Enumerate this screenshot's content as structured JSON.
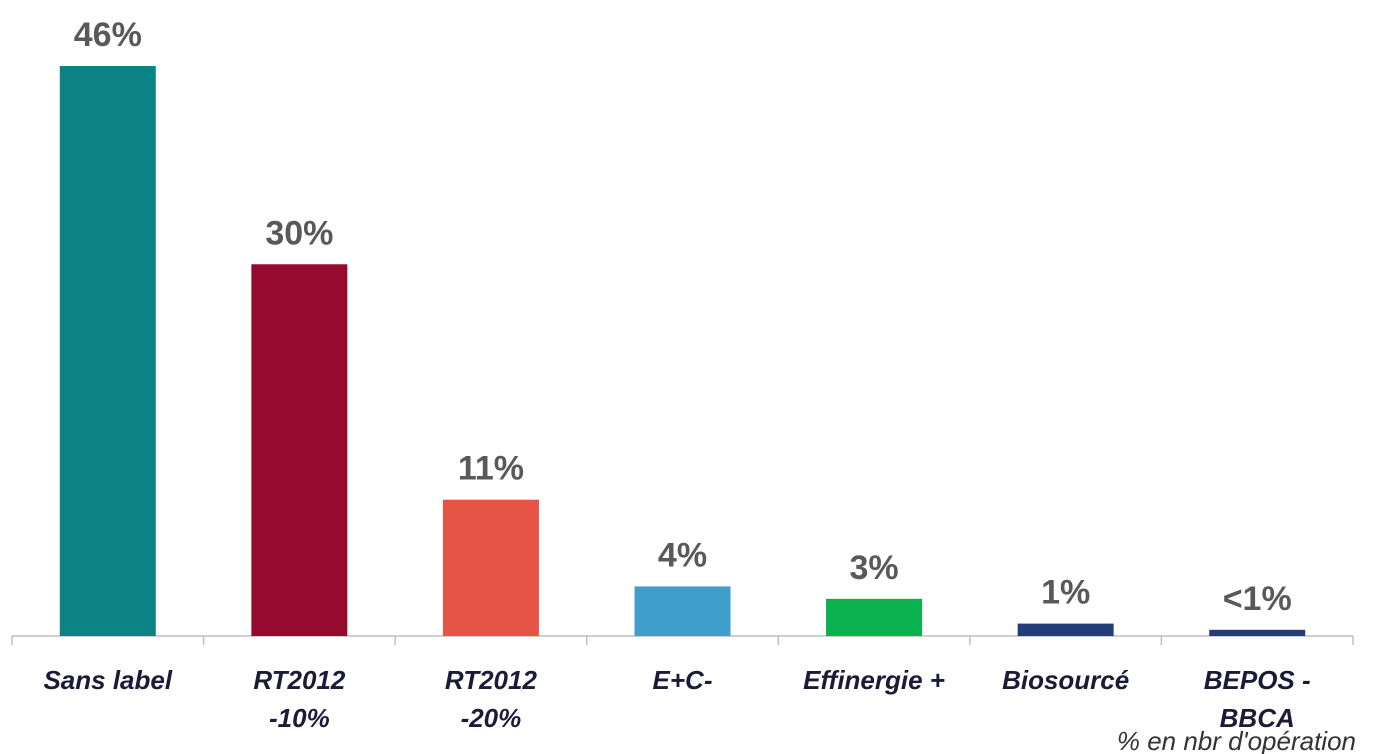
{
  "chart_data": {
    "type": "bar",
    "categories": [
      "Sans label",
      "RT2012\n-10%",
      "RT2012\n-20%",
      "E+C-",
      "Effinergie +",
      "Biosourcé",
      "BEPOS -\nBBCA"
    ],
    "values": [
      46,
      30,
      11,
      4,
      3,
      1,
      0.5
    ],
    "value_labels": [
      "46%",
      "30%",
      "11%",
      "4%",
      "3%",
      "1%",
      "<1%"
    ],
    "colors": [
      "#0b8385",
      "#960a2f",
      "#e55444",
      "#3f9fca",
      "#0bb04f",
      "#233d7b",
      "#233d7b"
    ],
    "ylim": [
      0,
      46
    ],
    "note": "% en nbr d'opération"
  }
}
